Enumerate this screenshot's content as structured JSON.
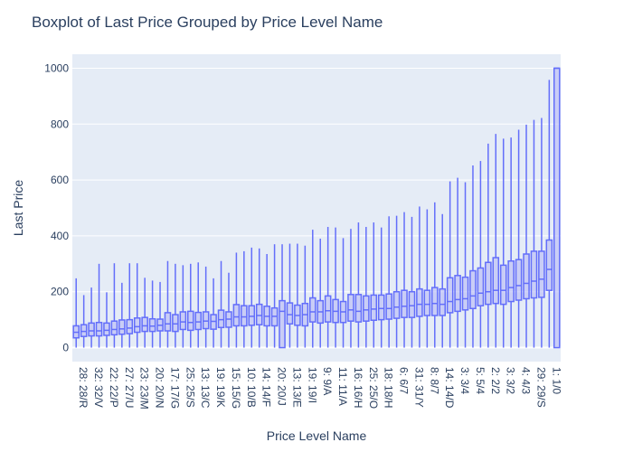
{
  "chart_data": {
    "type": "box",
    "title": "Boxplot of Last Price Grouped by Price Level Name",
    "xlabel": "Price Level Name",
    "ylabel": "Last Price",
    "ylim": [
      -50,
      1050
    ],
    "yticks": [
      0,
      200,
      400,
      600,
      800,
      1000
    ],
    "grid": true,
    "colors": {
      "plot_bg": "#e5ecf6",
      "grid": "#ffffff",
      "box_stroke": "#636efa",
      "box_fill": "#b5b9f6",
      "text": "#2a3f5f"
    },
    "xtick_labels": [
      "28: 28/R",
      "32: 32/V",
      "22: 22/P",
      "27: 27/U",
      "23: 23/M",
      "20: 20/N",
      "17: 17/G",
      "25: 25/S",
      "13: 13/C",
      "19: 19/K",
      "15: 15/G",
      "10: 10/B",
      "14: 14/F",
      "20: 20/J",
      "13: 13/E",
      "19: 19/I",
      "9: 9/A",
      "11: 11/A",
      "16: 16/H",
      "25: 25/O",
      "18: 18/H",
      "6: 6/7",
      "31: 31/Y",
      "8: 8/7",
      "14: 14/D",
      "3: 3/4",
      "5: 5/4",
      "2: 2/2",
      "3: 3/2",
      "4: 4/3",
      "29: 29/S",
      "1: 1/0"
    ],
    "boxes": [
      {
        "min": 0,
        "q1": 35,
        "median": 55,
        "q3": 78,
        "max": 248
      },
      {
        "min": 0,
        "q1": 40,
        "median": 58,
        "q3": 82,
        "max": 188
      },
      {
        "min": 0,
        "q1": 42,
        "median": 60,
        "q3": 88,
        "max": 215
      },
      {
        "min": 0,
        "q1": 42,
        "median": 60,
        "q3": 90,
        "max": 300
      },
      {
        "min": 0,
        "q1": 44,
        "median": 62,
        "q3": 88,
        "max": 198
      },
      {
        "min": 0,
        "q1": 46,
        "median": 65,
        "q3": 95,
        "max": 302
      },
      {
        "min": 0,
        "q1": 48,
        "median": 67,
        "q3": 99,
        "max": 232
      },
      {
        "min": 0,
        "q1": 50,
        "median": 70,
        "q3": 100,
        "max": 302
      },
      {
        "min": 0,
        "q1": 55,
        "median": 75,
        "q3": 106,
        "max": 302
      },
      {
        "min": 0,
        "q1": 58,
        "median": 78,
        "q3": 108,
        "max": 250
      },
      {
        "min": 0,
        "q1": 58,
        "median": 77,
        "q3": 103,
        "max": 240
      },
      {
        "min": 0,
        "q1": 60,
        "median": 80,
        "q3": 102,
        "max": 235
      },
      {
        "min": 0,
        "q1": 60,
        "median": 85,
        "q3": 125,
        "max": 310
      },
      {
        "min": 0,
        "q1": 58,
        "median": 85,
        "q3": 118,
        "max": 300
      },
      {
        "min": 0,
        "q1": 65,
        "median": 92,
        "q3": 128,
        "max": 295
      },
      {
        "min": 0,
        "q1": 62,
        "median": 90,
        "q3": 130,
        "max": 300
      },
      {
        "min": 0,
        "q1": 65,
        "median": 92,
        "q3": 126,
        "max": 305
      },
      {
        "min": 0,
        "q1": 68,
        "median": 95,
        "q3": 128,
        "max": 290
      },
      {
        "min": 0,
        "q1": 66,
        "median": 94,
        "q3": 118,
        "max": 248
      },
      {
        "min": 0,
        "q1": 72,
        "median": 100,
        "q3": 134,
        "max": 310
      },
      {
        "min": 0,
        "q1": 73,
        "median": 102,
        "q3": 128,
        "max": 268
      },
      {
        "min": 0,
        "q1": 78,
        "median": 110,
        "q3": 154,
        "max": 340
      },
      {
        "min": 0,
        "q1": 78,
        "median": 110,
        "q3": 150,
        "max": 345
      },
      {
        "min": 0,
        "q1": 80,
        "median": 112,
        "q3": 150,
        "max": 358
      },
      {
        "min": 0,
        "q1": 82,
        "median": 115,
        "q3": 155,
        "max": 355
      },
      {
        "min": 0,
        "q1": 78,
        "median": 112,
        "q3": 148,
        "max": 335
      },
      {
        "min": 0,
        "q1": 78,
        "median": 112,
        "q3": 142,
        "max": 370
      },
      {
        "min": 0,
        "q1": 0,
        "median": 130,
        "q3": 168,
        "max": 370
      },
      {
        "min": 0,
        "q1": 85,
        "median": 118,
        "q3": 160,
        "max": 372
      },
      {
        "min": 0,
        "q1": 80,
        "median": 115,
        "q3": 152,
        "max": 372
      },
      {
        "min": 0,
        "q1": 78,
        "median": 118,
        "q3": 158,
        "max": 365
      },
      {
        "min": 0,
        "q1": 92,
        "median": 128,
        "q3": 178,
        "max": 422
      },
      {
        "min": 0,
        "q1": 88,
        "median": 128,
        "q3": 168,
        "max": 390
      },
      {
        "min": 0,
        "q1": 92,
        "median": 132,
        "q3": 185,
        "max": 432
      },
      {
        "min": 0,
        "q1": 90,
        "median": 130,
        "q3": 172,
        "max": 430
      },
      {
        "min": 0,
        "q1": 90,
        "median": 128,
        "q3": 165,
        "max": 392
      },
      {
        "min": 0,
        "q1": 95,
        "median": 135,
        "q3": 190,
        "max": 425
      },
      {
        "min": 0,
        "q1": 92,
        "median": 130,
        "q3": 190,
        "max": 448
      },
      {
        "min": 0,
        "q1": 95,
        "median": 135,
        "q3": 185,
        "max": 432
      },
      {
        "min": 0,
        "q1": 98,
        "median": 138,
        "q3": 188,
        "max": 448
      },
      {
        "min": 0,
        "q1": 100,
        "median": 140,
        "q3": 188,
        "max": 430
      },
      {
        "min": 0,
        "q1": 102,
        "median": 140,
        "q3": 192,
        "max": 470
      },
      {
        "min": 0,
        "q1": 105,
        "median": 145,
        "q3": 200,
        "max": 472
      },
      {
        "min": 0,
        "q1": 108,
        "median": 148,
        "q3": 205,
        "max": 485
      },
      {
        "min": 0,
        "q1": 108,
        "median": 150,
        "q3": 200,
        "max": 468
      },
      {
        "min": 0,
        "q1": 112,
        "median": 155,
        "q3": 210,
        "max": 505
      },
      {
        "min": 0,
        "q1": 115,
        "median": 155,
        "q3": 205,
        "max": 495
      },
      {
        "min": 0,
        "q1": 115,
        "median": 158,
        "q3": 215,
        "max": 520
      },
      {
        "min": 0,
        "q1": 115,
        "median": 155,
        "q3": 210,
        "max": 478
      },
      {
        "min": 0,
        "q1": 125,
        "median": 165,
        "q3": 250,
        "max": 595
      },
      {
        "min": 0,
        "q1": 130,
        "median": 172,
        "q3": 258,
        "max": 608
      },
      {
        "min": 0,
        "q1": 135,
        "median": 175,
        "q3": 252,
        "max": 592
      },
      {
        "min": 0,
        "q1": 140,
        "median": 185,
        "q3": 275,
        "max": 652
      },
      {
        "min": 0,
        "q1": 150,
        "median": 195,
        "q3": 285,
        "max": 668
      },
      {
        "min": 0,
        "q1": 155,
        "median": 200,
        "q3": 305,
        "max": 730
      },
      {
        "min": 0,
        "q1": 158,
        "median": 205,
        "q3": 322,
        "max": 765
      },
      {
        "min": 0,
        "q1": 155,
        "median": 205,
        "q3": 295,
        "max": 748
      },
      {
        "min": 0,
        "q1": 165,
        "median": 215,
        "q3": 310,
        "max": 752
      },
      {
        "min": 0,
        "q1": 170,
        "median": 222,
        "q3": 315,
        "max": 780
      },
      {
        "min": 0,
        "q1": 175,
        "median": 230,
        "q3": 335,
        "max": 798
      },
      {
        "min": 0,
        "q1": 178,
        "median": 238,
        "q3": 345,
        "max": 815
      },
      {
        "min": 0,
        "q1": 180,
        "median": 245,
        "q3": 345,
        "max": 822
      },
      {
        "min": 0,
        "q1": 205,
        "median": 280,
        "q3": 385,
        "max": 958
      },
      {
        "min": 0,
        "q1": 0,
        "median": 1000,
        "q3": 1000,
        "max": 1000
      }
    ]
  }
}
